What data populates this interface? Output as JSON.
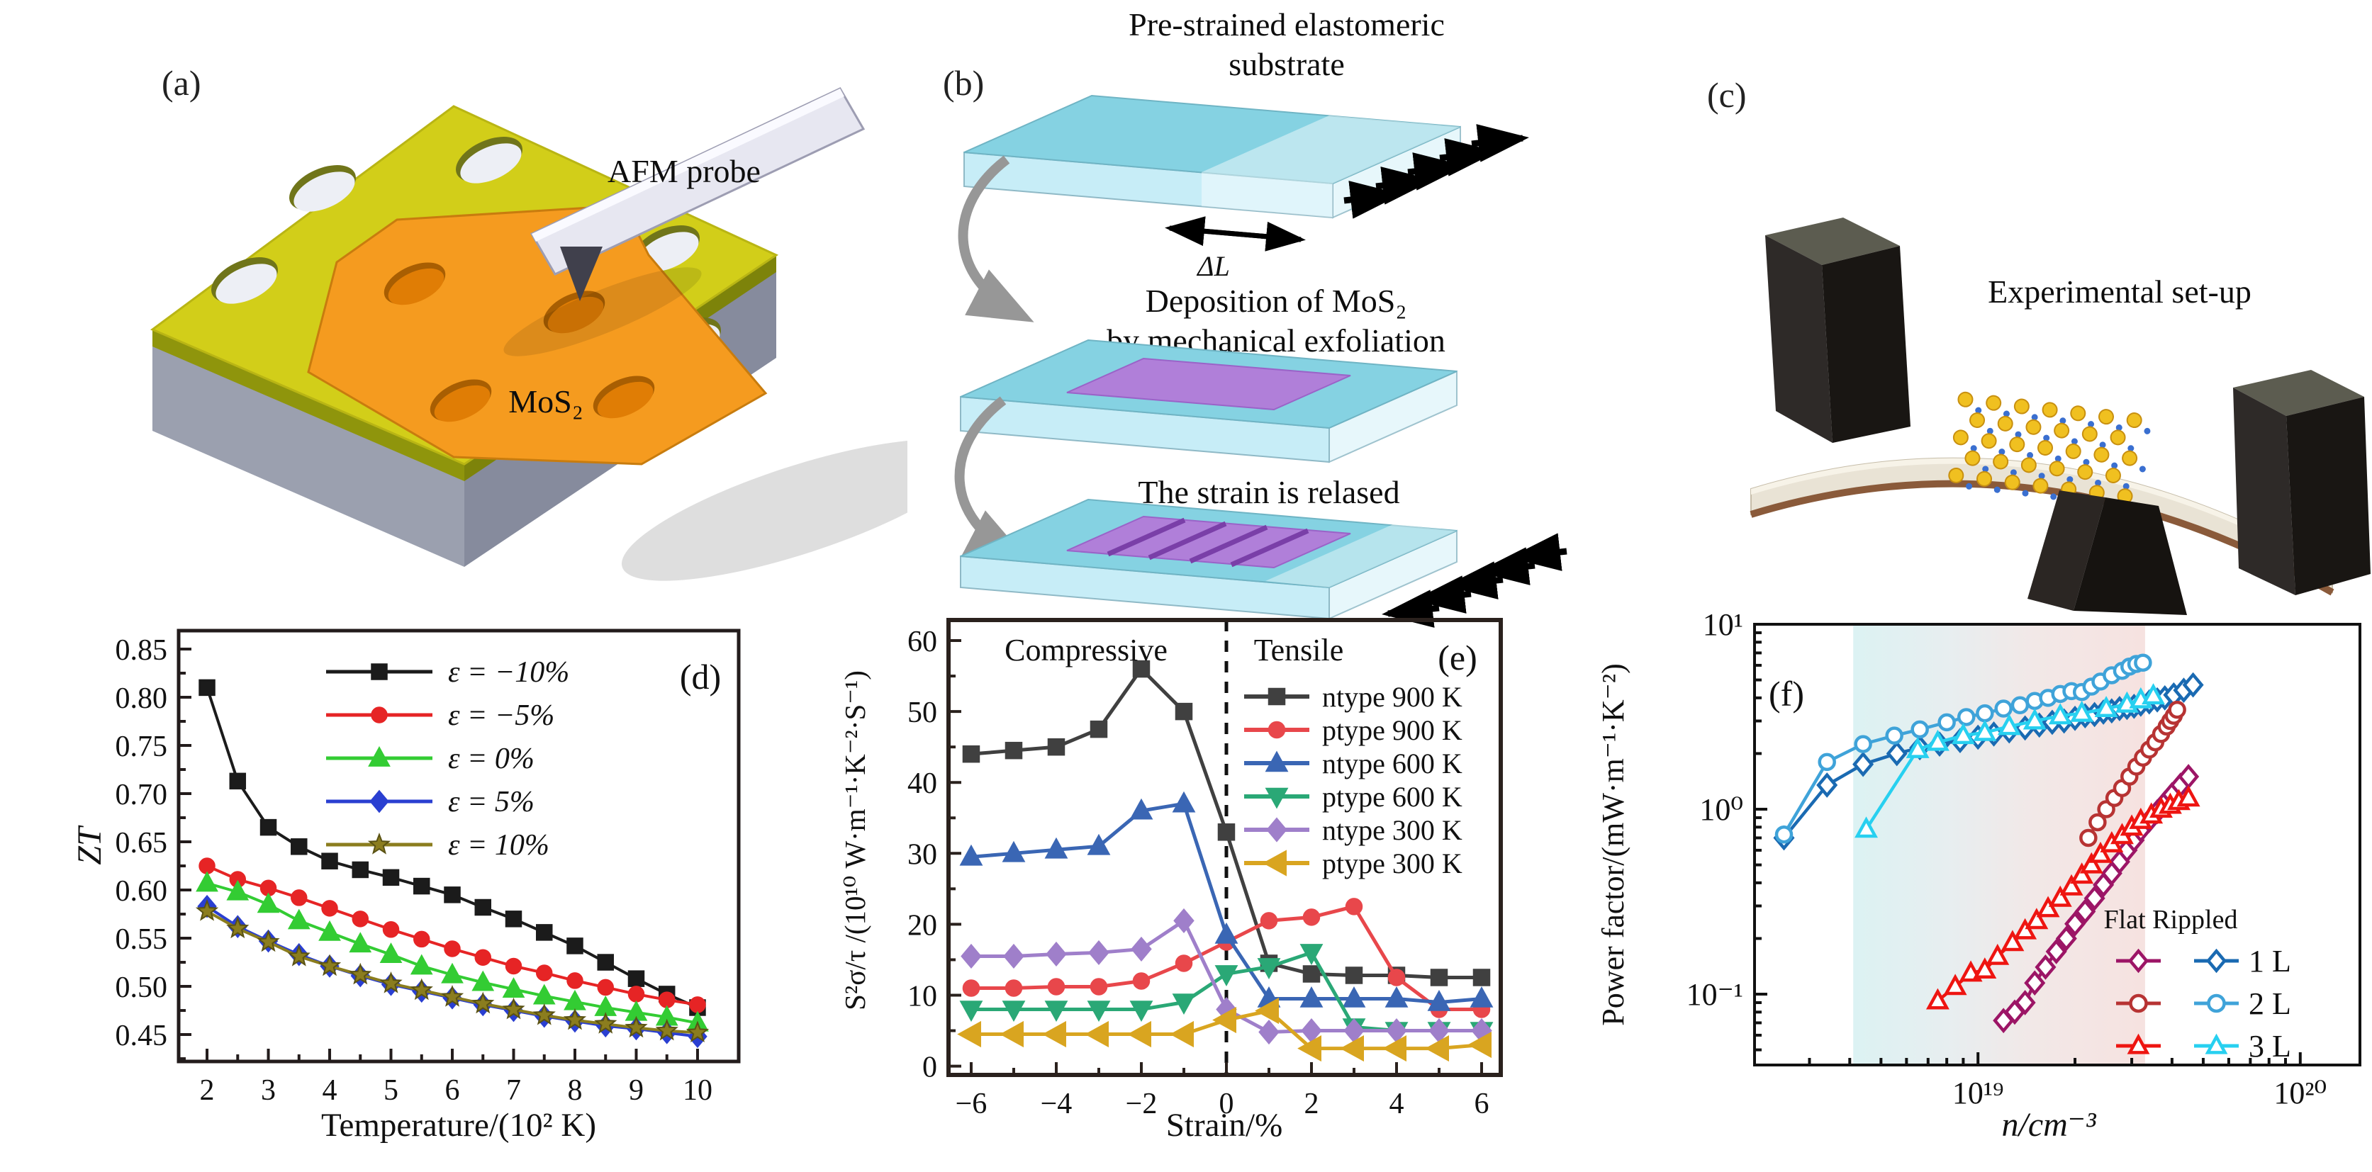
{
  "panels": {
    "a": {
      "label": "(a)",
      "probe_label": "AFM probe",
      "flake_label": "MoS₂"
    },
    "b": {
      "label": "(b)",
      "step1_line1": "Pre-strained elastomeric",
      "step1_line2": "substrate",
      "delta_label": "ΔL",
      "step2_line1": "Deposition of MoS₂",
      "step2_line2": "by mechanical exfoliation",
      "step3_title": "The strain is relased"
    },
    "c": {
      "label": "(c)",
      "title": "Experimental set-up"
    }
  },
  "chart_data": [
    {
      "id": "d",
      "type": "line",
      "panel_label": "(d)",
      "xlabel": "Temperature/(10² K)",
      "ylabel": "ZT",
      "xlim": [
        1.537,
        10.671
      ],
      "ylim": [
        0.4221,
        0.8691
      ],
      "grid": false,
      "legend_position": "inner-top-center",
      "xticks": [
        {
          "v": 2,
          "label": "2"
        },
        {
          "v": 3,
          "label": "3"
        },
        {
          "v": 4,
          "label": "4"
        },
        {
          "v": 5,
          "label": "5"
        },
        {
          "v": 6,
          "label": "6"
        },
        {
          "v": 7,
          "label": "7"
        },
        {
          "v": 8,
          "label": "8"
        },
        {
          "v": 9,
          "label": "9"
        },
        {
          "v": 10,
          "label": "10"
        }
      ],
      "xminor": [
        2.5,
        3.5,
        4.5,
        5.5,
        6.5,
        7.5,
        8.5,
        9.5
      ],
      "yticks": [
        {
          "v": 0.45,
          "label": "0.45"
        },
        {
          "v": 0.5,
          "label": "0.50"
        },
        {
          "v": 0.55,
          "label": "0.55"
        },
        {
          "v": 0.6,
          "label": "0.60"
        },
        {
          "v": 0.65,
          "label": "0.65"
        },
        {
          "v": 0.7,
          "label": "0.70"
        },
        {
          "v": 0.75,
          "label": "0.75"
        },
        {
          "v": 0.8,
          "label": "0.80"
        },
        {
          "v": 0.85,
          "label": "0.85"
        }
      ],
      "yminor": [
        0.425,
        0.475,
        0.525,
        0.575,
        0.625,
        0.675,
        0.725,
        0.775,
        0.825
      ],
      "x": [
        2,
        2.5,
        3,
        3.5,
        4,
        4.5,
        5,
        5.5,
        6,
        6.5,
        7,
        7.5,
        8,
        8.5,
        9,
        9.5,
        10
      ],
      "series": [
        {
          "name": "ε = −10%",
          "color": "#1b1b1b",
          "marker": "square",
          "msize": 21,
          "values": [
            0.81,
            0.713,
            0.665,
            0.645,
            0.63,
            0.621,
            0.613,
            0.604,
            0.595,
            0.582,
            0.57,
            0.556,
            0.542,
            0.525,
            0.508,
            0.492,
            0.478
          ]
        },
        {
          "name": "ε = −5%",
          "color": "#e62425",
          "marker": "circle",
          "msize": 21,
          "values": [
            0.625,
            0.611,
            0.602,
            0.592,
            0.581,
            0.57,
            0.559,
            0.549,
            0.539,
            0.53,
            0.521,
            0.514,
            0.506,
            0.499,
            0.492,
            0.486,
            0.481
          ]
        },
        {
          "name": "ε = 0%",
          "color": "#33cc33",
          "marker": "tri-up",
          "msize": 25,
          "values": [
            0.607,
            0.598,
            0.585,
            0.568,
            0.556,
            0.544,
            0.533,
            0.521,
            0.512,
            0.504,
            0.497,
            0.49,
            0.484,
            0.478,
            0.473,
            0.468,
            0.462
          ]
        },
        {
          "name": "ε = 5%",
          "color": "#2a3fd1",
          "marker": "diamond",
          "msize": 23,
          "values": [
            0.583,
            0.562,
            0.547,
            0.533,
            0.521,
            0.511,
            0.502,
            0.495,
            0.488,
            0.481,
            0.475,
            0.469,
            0.464,
            0.459,
            0.456,
            0.452,
            0.448
          ]
        },
        {
          "name": "ε = 10%",
          "color": "#8b7d1e",
          "marker": "star",
          "msize": 27,
          "values": [
            0.578,
            0.56,
            0.546,
            0.531,
            0.521,
            0.512,
            0.503,
            0.496,
            0.489,
            0.482,
            0.476,
            0.47,
            0.465,
            0.461,
            0.457,
            0.454,
            0.452
          ]
        }
      ]
    },
    {
      "id": "e",
      "type": "line",
      "panel_label": "(e)",
      "xlabel": "Strain/%",
      "ylabel": "S²σ/τ /(10¹⁰ W·m⁻¹·K⁻²·S⁻¹)",
      "xlim": [
        -6.533,
        6.45
      ],
      "ylim": [
        -1.24,
        62.9
      ],
      "grid": false,
      "vline": 0,
      "legend_position": "inner-right",
      "annotation_left": "Compressive",
      "annotation_right": "Tensile",
      "xticks": [
        {
          "v": -6,
          "label": "−6"
        },
        {
          "v": -4,
          "label": "−4"
        },
        {
          "v": -2,
          "label": "−2"
        },
        {
          "v": 0,
          "label": "0"
        },
        {
          "v": 2,
          "label": "2"
        },
        {
          "v": 4,
          "label": "4"
        },
        {
          "v": 6,
          "label": "6"
        }
      ],
      "xminor": [
        -5,
        -3,
        -1,
        1,
        3,
        5
      ],
      "yticks": [
        {
          "v": 0,
          "label": "0"
        },
        {
          "v": 10,
          "label": "10"
        },
        {
          "v": 20,
          "label": "20"
        },
        {
          "v": 30,
          "label": "30"
        },
        {
          "v": 40,
          "label": "40"
        },
        {
          "v": 50,
          "label": "50"
        },
        {
          "v": 60,
          "label": "60"
        }
      ],
      "yminor": [
        5,
        15,
        25,
        35,
        45,
        55
      ],
      "x": [
        -6,
        -5,
        -4,
        -3,
        -2,
        -1,
        0,
        1,
        2,
        3,
        4,
        5,
        6
      ],
      "series": [
        {
          "name": "ntype 900 K",
          "color": "#404040",
          "marker": "square",
          "msize": 22,
          "values": [
            44,
            44.5,
            45,
            47.5,
            56,
            50,
            33,
            14.5,
            13,
            12.8,
            12.8,
            12.5,
            12.5
          ]
        },
        {
          "name": "ptype 900 K",
          "color": "#e8474b",
          "marker": "circle",
          "msize": 22,
          "values": [
            11,
            11,
            11.2,
            11.2,
            12,
            14.5,
            17.5,
            20.5,
            21,
            22.5,
            12.5,
            8,
            8
          ]
        },
        {
          "name": "ntype 600 K",
          "color": "#3a66b4",
          "marker": "tri-up",
          "msize": 26,
          "values": [
            29.5,
            30,
            30.5,
            31,
            36,
            37,
            18.5,
            9.5,
            9.5,
            9.5,
            9.5,
            9,
            9.5
          ]
        },
        {
          "name": "ptype 600 K",
          "color": "#2aa876",
          "marker": "tri-down",
          "msize": 26,
          "values": [
            8,
            8,
            8,
            8,
            8,
            9,
            13,
            14,
            16,
            5.5,
            5,
            5,
            5
          ]
        },
        {
          "name": "ntype 300 K",
          "color": "#9f7fca",
          "marker": "diamond",
          "msize": 25,
          "values": [
            15.5,
            15.5,
            15.8,
            16,
            16.5,
            20.5,
            8,
            4.8,
            5,
            5,
            5,
            5,
            5
          ]
        },
        {
          "name": "ptype 300 K",
          "color": "#d9a520",
          "marker": "tri-left",
          "msize": 30,
          "values": [
            4.5,
            4.5,
            4.5,
            4.5,
            4.5,
            4.5,
            6.5,
            7.8,
            2.5,
            2.5,
            2.5,
            2.5,
            3
          ]
        }
      ]
    },
    {
      "id": "f",
      "type": "line",
      "panel_label": "(f)",
      "xlabel": "n/cm⁻³",
      "ylabel": "Power factor/(mW·m⁻¹·K⁻²)",
      "xlog": true,
      "ylog": true,
      "xlim": [
        2.026e+18,
        1.532e+20
      ],
      "ylim": [
        0.0414,
        10
      ],
      "grid": false,
      "legend_position": "inner-bottom-right",
      "shade": {
        "x0": 4.1e+18,
        "x1": 3.3e+19,
        "colors": [
          "#dcf2f3",
          "#e7eef0",
          "#f2e8e7",
          "#f6e2e0"
        ]
      },
      "xticks": [
        {
          "v": 1e+19,
          "label": "10¹⁹"
        },
        {
          "v": 1e+20,
          "label": "10²⁰"
        }
      ],
      "xminor": [
        3e+18,
        4e+18,
        5e+18,
        6e+18,
        7e+18,
        8e+18,
        9e+18,
        2e+19,
        3e+19,
        4e+19,
        5e+19,
        6e+19,
        7e+19,
        8e+19,
        9e+19
      ],
      "yticks": [
        {
          "v": 0.1,
          "label": "10⁻¹"
        },
        {
          "v": 1,
          "label": "10⁰"
        },
        {
          "v": 10,
          "label": "10¹"
        }
      ],
      "yminor": [
        0.05,
        0.06,
        0.07,
        0.08,
        0.09,
        0.2,
        0.3,
        0.4,
        0.5,
        0.6,
        0.7,
        0.8,
        0.9,
        2,
        3,
        4,
        5,
        6,
        7,
        8,
        9
      ],
      "legend2": {
        "header": "Flat Rippled",
        "rows": [
          {
            "label": "1 L",
            "flat": {
              "color": "#9c1566",
              "marker": "diamond"
            },
            "rippled": {
              "color": "#1a6ab2",
              "marker": "diamond"
            }
          },
          {
            "label": "2 L",
            "flat": {
              "color": "#b73333",
              "marker": "circle"
            },
            "rippled": {
              "color": "#3fa3d9",
              "marker": "circle"
            }
          },
          {
            "label": "3 L",
            "flat": {
              "color": "#ee1511",
              "marker": "tri-up"
            },
            "rippled": {
              "color": "#27d0f0",
              "marker": "tri-up"
            }
          }
        ]
      },
      "series": [
        {
          "name": "Rippled 1 L",
          "color": "#1a6ab2",
          "marker": "diamond",
          "open": true,
          "msize": 23,
          "x": [
            2.5e+18,
            3.4e+18,
            4.4e+18,
            5.6e+18,
            6.6e+18,
            7.6e+18,
            8.8e+18,
            1e+19,
            1.12e+19,
            1.25e+19,
            1.4e+19,
            1.55e+19,
            1.7e+19,
            1.85e+19,
            2e+19,
            2.15e+19,
            2.3e+19,
            2.45e+19,
            2.6e+19,
            2.75e+19,
            2.9e+19,
            3.05e+19,
            3.2e+19,
            3.4e+19,
            3.6e+19,
            3.8e+19,
            4.05e+19,
            4.35e+19,
            4.65e+19
          ],
          "y": [
            0.7,
            1.35,
            1.75,
            2.0,
            2.15,
            2.25,
            2.35,
            2.45,
            2.55,
            2.65,
            2.75,
            2.85,
            2.95,
            3.0,
            3.1,
            3.2,
            3.25,
            3.35,
            3.4,
            3.5,
            3.55,
            3.6,
            3.7,
            3.8,
            3.9,
            4.0,
            4.15,
            4.4,
            4.7
          ]
        },
        {
          "name": "Rippled 2 L",
          "color": "#3fa3d9",
          "marker": "circle",
          "open": true,
          "msize": 21,
          "x": [
            2.5e+18,
            3.4e+18,
            4.4e+18,
            5.5e+18,
            6.6e+18,
            8e+18,
            9.2e+18,
            1.05e+19,
            1.2e+19,
            1.35e+19,
            1.5e+19,
            1.65e+19,
            1.8e+19,
            1.95e+19,
            2.1e+19,
            2.25e+19,
            2.4e+19,
            2.6e+19,
            2.8e+19,
            2.95e+19,
            3.1e+19,
            3.25e+19
          ],
          "y": [
            0.73,
            1.8,
            2.25,
            2.5,
            2.7,
            2.95,
            3.15,
            3.3,
            3.5,
            3.65,
            3.85,
            4.0,
            4.2,
            4.35,
            4.3,
            4.6,
            4.9,
            5.3,
            5.6,
            5.9,
            6.1,
            6.2
          ]
        },
        {
          "name": "Rippled 3 L",
          "color": "#27d0f0",
          "marker": "tri-up",
          "open": true,
          "msize": 23,
          "x": [
            4.5e+18,
            6.5e+18,
            7.5e+18,
            9e+18,
            1.05e+19,
            1.25e+19,
            1.5e+19,
            1.8e+19,
            2.1e+19,
            2.5e+19,
            2.9e+19,
            3.2e+19,
            3.5e+19
          ],
          "y": [
            0.78,
            2.1,
            2.3,
            2.5,
            2.6,
            2.8,
            3.0,
            3.2,
            3.3,
            3.5,
            3.7,
            3.9,
            4.1
          ]
        },
        {
          "name": "Flat 1 L",
          "color": "#9c1566",
          "marker": "diamond",
          "open": true,
          "msize": 23,
          "x": [
            1.2e+19,
            1.3e+19,
            1.4e+19,
            1.5e+19,
            1.62e+19,
            1.75e+19,
            1.88e+19,
            2e+19,
            2.15e+19,
            2.3e+19,
            2.45e+19,
            2.6e+19,
            2.75e+19,
            2.9e+19,
            3.05e+19,
            3.2e+19,
            3.4e+19,
            3.6e+19,
            3.8e+19,
            4e+19,
            4.25e+19,
            4.5e+19
          ],
          "y": [
            0.072,
            0.08,
            0.09,
            0.115,
            0.14,
            0.17,
            0.2,
            0.24,
            0.28,
            0.33,
            0.39,
            0.45,
            0.52,
            0.6,
            0.68,
            0.77,
            0.87,
            0.97,
            1.08,
            1.2,
            1.35,
            1.5
          ]
        },
        {
          "name": "Flat 2 L",
          "color": "#b73333",
          "marker": "circle",
          "open": true,
          "msize": 21,
          "x": [
            2.2e+19,
            2.35e+19,
            2.5e+19,
            2.65e+19,
            2.8e+19,
            2.95e+19,
            3.1e+19,
            3.25e+19,
            3.4e+19,
            3.55e+19,
            3.7e+19,
            3.85e+19,
            3.95e+19,
            4.05e+19,
            4.15e+19
          ],
          "y": [
            0.7,
            0.85,
            1.0,
            1.15,
            1.3,
            1.5,
            1.7,
            1.9,
            2.1,
            2.3,
            2.55,
            2.8,
            3.0,
            3.2,
            3.45
          ]
        },
        {
          "name": "Flat 3 L",
          "color": "#ee1511",
          "marker": "tri-up",
          "open": true,
          "msize": 23,
          "x": [
            7.5e+18,
            8.5e+18,
            9.5e+18,
            1.05e+19,
            1.15e+19,
            1.28e+19,
            1.4e+19,
            1.52e+19,
            1.65e+19,
            1.8e+19,
            1.95e+19,
            2.1e+19,
            2.25e+19,
            2.4e+19,
            2.6e+19,
            2.8e+19,
            3e+19,
            3.2e+19,
            3.45e+19,
            3.7e+19,
            3.95e+19,
            4.2e+19,
            4.5e+19
          ],
          "y": [
            0.092,
            0.11,
            0.13,
            0.135,
            0.16,
            0.19,
            0.22,
            0.25,
            0.29,
            0.33,
            0.38,
            0.44,
            0.5,
            0.57,
            0.65,
            0.72,
            0.8,
            0.87,
            0.93,
            1.0,
            1.05,
            1.1,
            1.15
          ]
        }
      ]
    }
  ]
}
